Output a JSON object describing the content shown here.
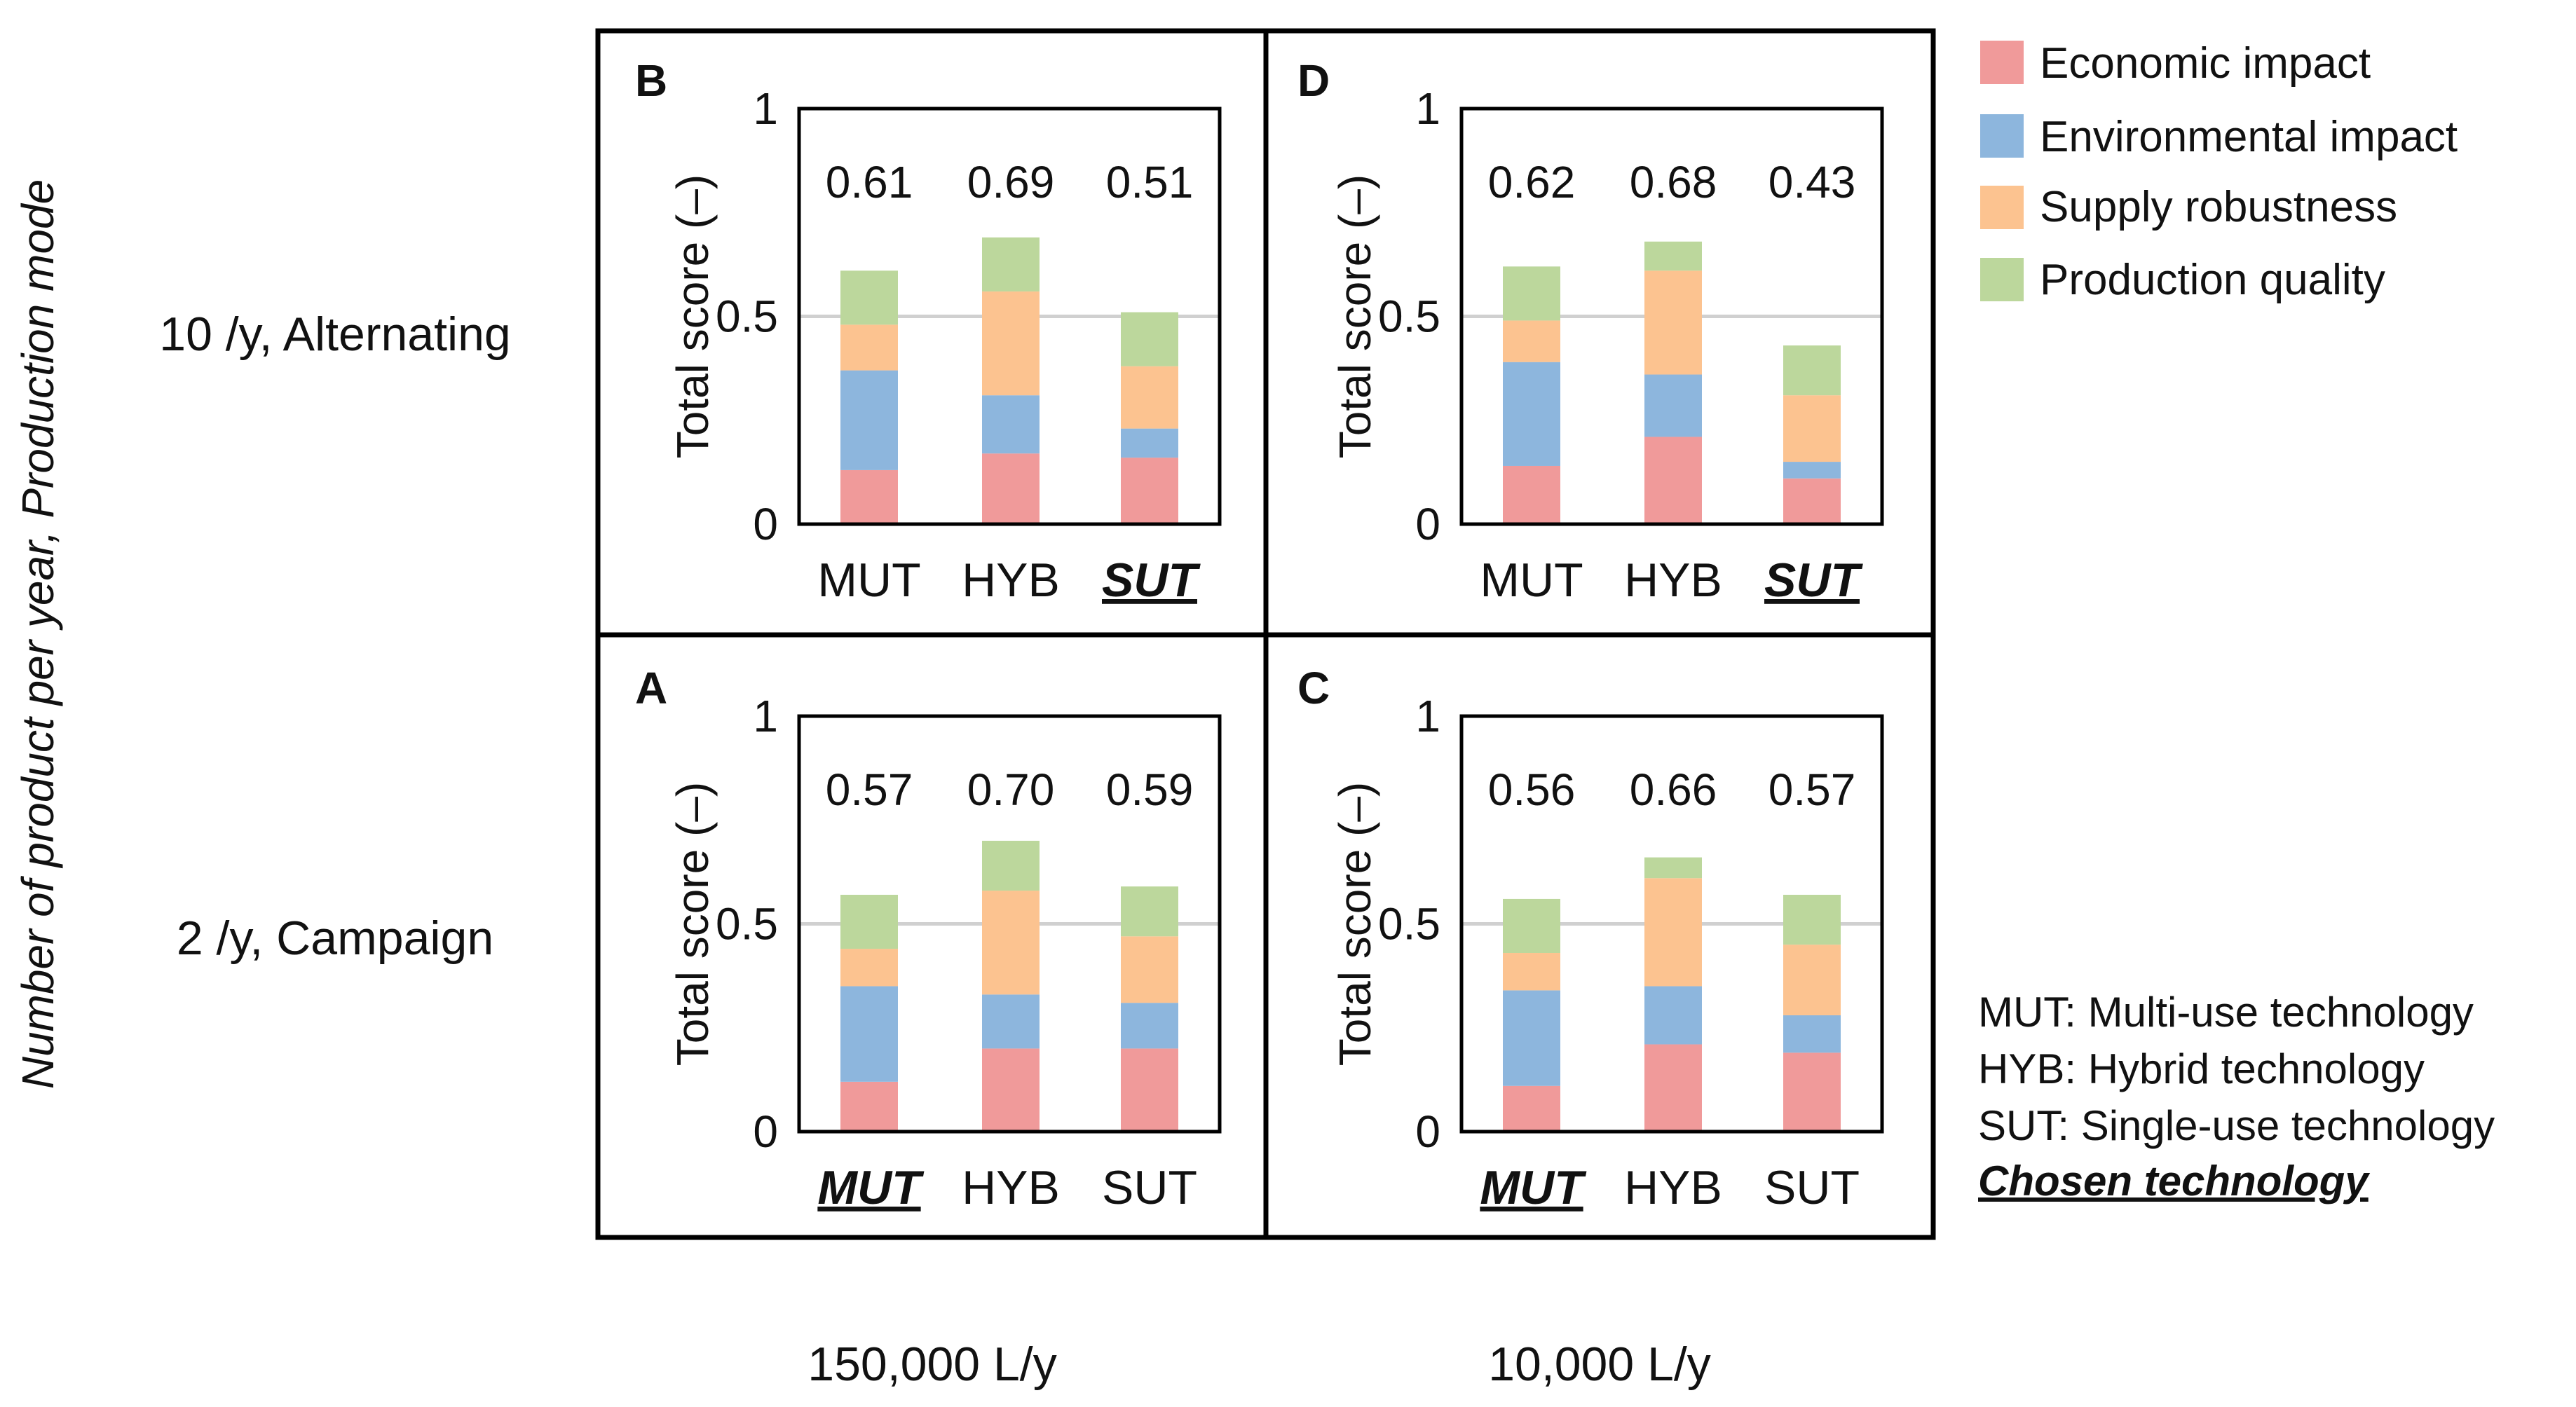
{
  "figure": {
    "y_axis_title": "Number of product per year, Production mode",
    "row_labels": [
      "10 /y, Alternating",
      "2 /y, Campaign"
    ],
    "column_labels": [
      "150,000 L/y",
      "10,000 L/y"
    ]
  },
  "legend": {
    "items": [
      {
        "name": "Economic impact",
        "color": "#f09a9a"
      },
      {
        "name": "Environmental impact",
        "color": "#8db6dd"
      },
      {
        "name": "Supply robustness",
        "color": "#fcc390"
      },
      {
        "name": "Production quality",
        "color": "#bcd79c"
      }
    ]
  },
  "notes": {
    "lines": [
      "MUT: Multi-use technology",
      "HYB: Hybrid technology",
      "SUT: Single-use technology"
    ],
    "chosen": "Chosen technology"
  },
  "chart_data": [
    {
      "type": "bar",
      "stacked": true,
      "panel": "B",
      "row": "10 /y, Alternating",
      "column": "150,000 L/y",
      "categories": [
        "MUT",
        "HYB",
        "SUT"
      ],
      "chosen": "SUT",
      "ylabel": "Total score (–)",
      "ylim": [
        0,
        1
      ],
      "yticks": [
        0,
        0.5,
        1
      ],
      "yticks_labels": [
        "0",
        "0.5",
        "1"
      ],
      "totals": [
        "0.61",
        "0.69",
        "0.51"
      ],
      "series": [
        {
          "name": "Economic impact",
          "values": [
            0.13,
            0.17,
            0.16
          ]
        },
        {
          "name": "Environmental impact",
          "values": [
            0.24,
            0.14,
            0.07
          ]
        },
        {
          "name": "Supply robustness",
          "values": [
            0.11,
            0.25,
            0.15
          ]
        },
        {
          "name": "Production quality",
          "values": [
            0.13,
            0.13,
            0.13
          ]
        }
      ]
    },
    {
      "type": "bar",
      "stacked": true,
      "panel": "D",
      "row": "10 /y, Alternating",
      "column": "10,000 L/y",
      "categories": [
        "MUT",
        "HYB",
        "SUT"
      ],
      "chosen": "SUT",
      "ylabel": "Total score (–)",
      "ylim": [
        0,
        1
      ],
      "yticks": [
        0,
        0.5,
        1
      ],
      "yticks_labels": [
        "0",
        "0.5",
        "1"
      ],
      "totals": [
        "0.62",
        "0.68",
        "0.43"
      ],
      "series": [
        {
          "name": "Economic impact",
          "values": [
            0.14,
            0.21,
            0.11
          ]
        },
        {
          "name": "Environmental impact",
          "values": [
            0.25,
            0.15,
            0.04
          ]
        },
        {
          "name": "Supply robustness",
          "values": [
            0.1,
            0.25,
            0.16
          ]
        },
        {
          "name": "Production quality",
          "values": [
            0.13,
            0.07,
            0.12
          ]
        }
      ]
    },
    {
      "type": "bar",
      "stacked": true,
      "panel": "A",
      "row": "2 /y, Campaign",
      "column": "150,000 L/y",
      "categories": [
        "MUT",
        "HYB",
        "SUT"
      ],
      "chosen": "MUT",
      "ylabel": "Total score (–)",
      "ylim": [
        0,
        1
      ],
      "yticks": [
        0,
        0.5,
        1
      ],
      "yticks_labels": [
        "0",
        "0.5",
        "1"
      ],
      "totals": [
        "0.57",
        "0.70",
        "0.59"
      ],
      "series": [
        {
          "name": "Economic impact",
          "values": [
            0.12,
            0.2,
            0.2
          ]
        },
        {
          "name": "Environmental impact",
          "values": [
            0.23,
            0.13,
            0.11
          ]
        },
        {
          "name": "Supply robustness",
          "values": [
            0.09,
            0.25,
            0.16
          ]
        },
        {
          "name": "Production quality",
          "values": [
            0.13,
            0.12,
            0.12
          ]
        }
      ]
    },
    {
      "type": "bar",
      "stacked": true,
      "panel": "C",
      "row": "2 /y, Campaign",
      "column": "10,000 L/y",
      "categories": [
        "MUT",
        "HYB",
        "SUT"
      ],
      "chosen": "MUT",
      "ylabel": "Total score (–)",
      "ylim": [
        0,
        1
      ],
      "yticks": [
        0,
        0.5,
        1
      ],
      "yticks_labels": [
        "0",
        "0.5",
        "1"
      ],
      "totals": [
        "0.56",
        "0.66",
        "0.57"
      ],
      "series": [
        {
          "name": "Economic impact",
          "values": [
            0.11,
            0.21,
            0.19
          ]
        },
        {
          "name": "Environmental impact",
          "values": [
            0.23,
            0.14,
            0.09
          ]
        },
        {
          "name": "Supply robustness",
          "values": [
            0.09,
            0.26,
            0.17
          ]
        },
        {
          "name": "Production quality",
          "values": [
            0.13,
            0.05,
            0.12
          ]
        }
      ]
    }
  ]
}
